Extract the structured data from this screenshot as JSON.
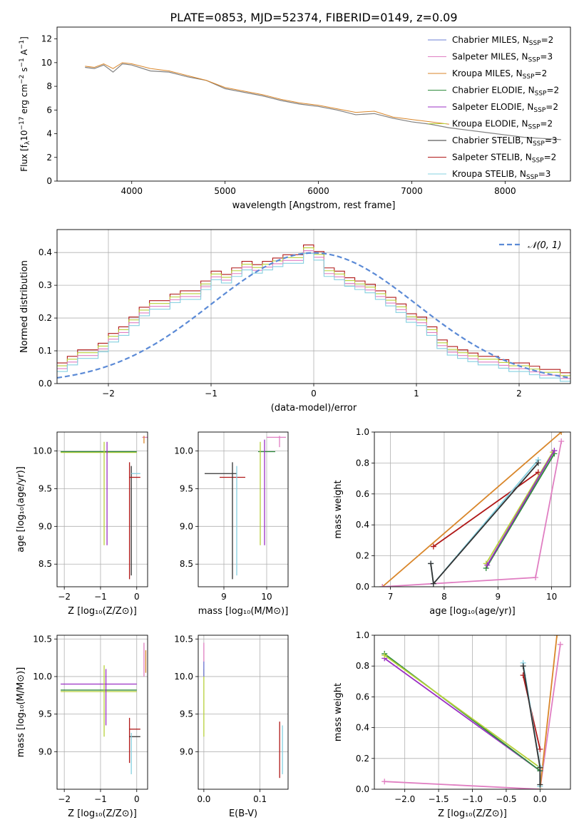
{
  "figure": {
    "title": "PLATE=0853, MJD=52374, FIBERID=0149, z=0.09"
  },
  "colors": {
    "Chabrier MILES": "#6b7fd6",
    "Salpeter MILES": "#e07ec2",
    "Kroupa MILES": "#d9862a",
    "Chabrier ELODIE": "#2e8b3c",
    "Salpeter ELODIE": "#9b30c4",
    "Kroupa ELODIE": "#b7d13a",
    "Chabrier STELIB": "#333333",
    "Salpeter STELIB": "#b01818",
    "Kroupa STELIB": "#85d0e0",
    "data": "#808080",
    "normal": "#5b8ad6"
  },
  "chart_data": [
    {
      "id": "spectrum",
      "type": "line",
      "title": "PLATE=0853, MJD=52374, FIBERID=0149, z=0.09",
      "xlabel": "wavelength [Angstrom, rest frame]",
      "ylabel_parts": [
        "Flux [f",
        "λ",
        "10",
        "−17",
        " erg cm",
        "−2",
        " s",
        "−1",
        " A",
        "−1",
        "]"
      ],
      "xlim": [
        3200,
        8700
      ],
      "ylim": [
        0,
        13
      ],
      "xticks": [
        4000,
        5000,
        6000,
        7000,
        8000
      ],
      "yticks": [
        0,
        2,
        4,
        6,
        8,
        10,
        12
      ],
      "legend_position": "top-right",
      "legend": [
        {
          "name": "Chabrier MILES",
          "nssp": "2"
        },
        {
          "name": "Salpeter MILES",
          "nssp": "3"
        },
        {
          "name": "Kroupa MILES",
          "nssp": "2"
        },
        {
          "name": "Chabrier ELODIE",
          "nssp": "2"
        },
        {
          "name": "Salpeter ELODIE",
          "nssp": "2"
        },
        {
          "name": "Kroupa ELODIE",
          "nssp": "2"
        },
        {
          "name": "Chabrier STELIB",
          "nssp": "3"
        },
        {
          "name": "Salpeter STELIB",
          "nssp": "2"
        },
        {
          "name": "Kroupa STELIB",
          "nssp": "3"
        }
      ],
      "data_series": {
        "x": [
          3500,
          3600,
          3700,
          3800,
          3900,
          4000,
          4200,
          4400,
          4600,
          4800,
          5000,
          5200,
          5400,
          5600,
          5800,
          6000,
          6200,
          6400,
          6600,
          6800,
          7000,
          7200,
          7400,
          7600,
          7800,
          8000,
          8200,
          8400,
          8600
        ],
        "y": [
          9.6,
          9.5,
          9.8,
          9.2,
          9.9,
          9.8,
          9.3,
          9.2,
          8.8,
          8.5,
          7.8,
          7.5,
          7.2,
          6.8,
          6.5,
          6.3,
          6.0,
          5.6,
          5.7,
          5.3,
          5.0,
          4.8,
          4.5,
          4.3,
          4.1,
          3.9,
          3.7,
          3.6,
          3.5
        ]
      },
      "model_series": {
        "x": [
          3500,
          3600,
          3700,
          3800,
          3900,
          4000,
          4200,
          4400,
          4600,
          4800,
          5000,
          5200,
          5400,
          5600,
          5800,
          6000,
          6200,
          6400,
          6600,
          6800,
          7000,
          7200,
          7400
        ],
        "y": [
          9.7,
          9.6,
          9.9,
          9.5,
          10.0,
          9.9,
          9.5,
          9.3,
          8.9,
          8.5,
          7.9,
          7.6,
          7.3,
          6.9,
          6.6,
          6.4,
          6.1,
          5.8,
          5.9,
          5.4,
          5.2,
          5.0,
          4.8
        ]
      }
    },
    {
      "id": "residuals",
      "type": "line",
      "xlabel": "(data-model)/error",
      "ylabel": "Normed distribution",
      "xlim": [
        -2.5,
        2.5
      ],
      "ylim": [
        0,
        0.47
      ],
      "xticks": [
        -2,
        -1,
        0,
        1,
        2
      ],
      "yticks": [
        0.0,
        0.1,
        0.2,
        0.3,
        0.4
      ],
      "legend_position": "top-right",
      "legend": [
        "𝒩(0, 1)"
      ],
      "hist_x": [
        -2.45,
        -2.35,
        -2.25,
        -2.15,
        -2.05,
        -1.95,
        -1.85,
        -1.75,
        -1.65,
        -1.55,
        -1.45,
        -1.35,
        -1.25,
        -1.15,
        -1.05,
        -0.95,
        -0.85,
        -0.75,
        -0.65,
        -0.55,
        -0.45,
        -0.35,
        -0.25,
        -0.15,
        -0.05,
        0.05,
        0.15,
        0.25,
        0.35,
        0.45,
        0.55,
        0.65,
        0.75,
        0.85,
        0.95,
        1.05,
        1.15,
        1.25,
        1.35,
        1.45,
        1.55,
        1.65,
        1.75,
        1.85,
        1.95,
        2.05,
        2.15,
        2.25,
        2.35,
        2.45
      ],
      "hist_y": [
        0.05,
        0.07,
        0.09,
        0.09,
        0.11,
        0.14,
        0.16,
        0.19,
        0.22,
        0.24,
        0.24,
        0.26,
        0.27,
        0.27,
        0.3,
        0.33,
        0.32,
        0.34,
        0.36,
        0.35,
        0.36,
        0.37,
        0.38,
        0.38,
        0.41,
        0.39,
        0.34,
        0.33,
        0.31,
        0.3,
        0.29,
        0.27,
        0.25,
        0.23,
        0.2,
        0.19,
        0.16,
        0.12,
        0.1,
        0.09,
        0.08,
        0.07,
        0.07,
        0.06,
        0.05,
        0.05,
        0.04,
        0.03,
        0.03,
        0.02
      ],
      "normal_curve": {
        "mu": 0,
        "sigma": 1
      }
    },
    {
      "id": "age-vs-Z",
      "type": "scatter",
      "xlabel": "Z [log₁₀(Z/Z⊙)]",
      "ylabel": "age  [log₁₀(age/yr)]",
      "xlim": [
        -2.2,
        0.3
      ],
      "ylim": [
        8.2,
        10.25
      ],
      "xticks": [
        -2,
        -1,
        0
      ],
      "yticks": [
        8.5,
        9.0,
        9.5,
        10.0
      ],
      "bars": [
        {
          "x": -2.1,
          "x2": 0.0,
          "y": 9.98,
          "y2": 9.98,
          "model": "Kroupa ELODIE"
        },
        {
          "x": -2.1,
          "x2": 0.0,
          "y": 9.99,
          "y2": 9.99,
          "model": "Chabrier ELODIE"
        },
        {
          "x": -0.9,
          "x2": -0.9,
          "y": 8.75,
          "y2": 10.12,
          "model": "Kroupa ELODIE"
        },
        {
          "x": -0.82,
          "x2": -0.82,
          "y": 8.75,
          "y2": 10.12,
          "model": "Salpeter ELODIE"
        },
        {
          "x": -0.2,
          "x2": -0.2,
          "y": 8.3,
          "y2": 9.85,
          "model": "Salpeter STELIB"
        },
        {
          "x": -0.15,
          "x2": -0.15,
          "y": 8.35,
          "y2": 9.8,
          "model": "Chabrier STELIB"
        },
        {
          "x": -0.2,
          "x2": 0.1,
          "y": 9.65,
          "y2": 9.65,
          "model": "Salpeter STELIB"
        },
        {
          "x": -0.15,
          "x2": 0.1,
          "y": 9.7,
          "y2": 9.7,
          "model": "Kroupa STELIB"
        },
        {
          "x": 0.15,
          "x2": 0.3,
          "y": 10.18,
          "y2": 10.18,
          "model": "Salpeter MILES"
        },
        {
          "x": 0.2,
          "x2": 0.2,
          "y": 10.1,
          "y2": 10.2,
          "model": "Kroupa MILES"
        }
      ]
    },
    {
      "id": "age-vs-mass",
      "type": "scatter",
      "xlabel": "mass [log₁₀(M/M⊙)]",
      "ylabel": "",
      "xlim": [
        8.4,
        10.5
      ],
      "ylim": [
        8.2,
        10.25
      ],
      "xticks": [
        8,
        9,
        10
      ],
      "yticks": [
        8.5,
        9.0,
        9.5,
        10.0
      ],
      "bars": [
        {
          "x": 8.55,
          "x2": 9.3,
          "y": 9.7,
          "y2": 9.7,
          "model": "Chabrier STELIB"
        },
        {
          "x": 8.9,
          "x2": 9.5,
          "y": 9.65,
          "y2": 9.65,
          "model": "Salpeter STELIB"
        },
        {
          "x": 9.2,
          "x2": 9.2,
          "y": 8.3,
          "y2": 9.85,
          "model": "Chabrier STELIB"
        },
        {
          "x": 9.3,
          "x2": 9.3,
          "y": 8.35,
          "y2": 9.8,
          "model": "Kroupa STELIB"
        },
        {
          "x": 9.8,
          "x2": 10.2,
          "y": 9.99,
          "y2": 9.99,
          "model": "Chabrier ELODIE"
        },
        {
          "x": 9.85,
          "x2": 9.85,
          "y": 8.75,
          "y2": 10.12,
          "model": "Kroupa ELODIE"
        },
        {
          "x": 9.95,
          "x2": 9.95,
          "y": 8.75,
          "y2": 10.15,
          "model": "Salpeter ELODIE"
        },
        {
          "x": 10.0,
          "x2": 10.45,
          "y": 10.18,
          "y2": 10.18,
          "model": "Salpeter MILES"
        },
        {
          "x": 10.3,
          "x2": 10.3,
          "y": 10.05,
          "y2": 10.2,
          "model": "Salpeter MILES"
        }
      ]
    },
    {
      "id": "massweight-vs-age",
      "type": "line",
      "xlabel": "age  [log₁₀(age/yr)]",
      "ylabel": "mass weight",
      "xlim": [
        6.7,
        10.35
      ],
      "ylim": [
        0,
        1
      ],
      "xticks": [
        7,
        8,
        9,
        10
      ],
      "yticks": [
        0.0,
        0.2,
        0.4,
        0.6,
        0.8,
        1.0
      ],
      "series": [
        {
          "model": "Kroupa MILES",
          "x": [
            6.85,
            10.18
          ],
          "y": [
            0.0,
            1.0
          ]
        },
        {
          "model": "Salpeter MILES",
          "x": [
            6.85,
            9.7,
            10.18
          ],
          "y": [
            0.0,
            0.06,
            0.94
          ]
        },
        {
          "model": "Salpeter STELIB",
          "x": [
            7.8,
            9.75
          ],
          "y": [
            0.26,
            0.74
          ]
        },
        {
          "model": "Kroupa STELIB",
          "x": [
            7.75,
            7.8,
            9.75
          ],
          "y": [
            0.15,
            0.02,
            0.82
          ]
        },
        {
          "model": "Chabrier STELIB",
          "x": [
            7.75,
            7.8,
            9.75
          ],
          "y": [
            0.15,
            0.02,
            0.8
          ]
        },
        {
          "model": "Chabrier ELODIE",
          "x": [
            8.78,
            10.05
          ],
          "y": [
            0.12,
            0.86
          ]
        },
        {
          "model": "Kroupa ELODIE",
          "x": [
            8.78,
            10.02
          ],
          "y": [
            0.15,
            0.87
          ]
        },
        {
          "model": "Salpeter ELODIE",
          "x": [
            8.8,
            10.05
          ],
          "y": [
            0.14,
            0.88
          ]
        }
      ]
    },
    {
      "id": "mass-vs-Z",
      "type": "scatter",
      "xlabel": "Z [log₁₀(Z/Z⊙)]",
      "ylabel": "mass [log₁₀(M/M⊙)]",
      "xlim": [
        -2.2,
        0.3
      ],
      "ylim": [
        8.5,
        10.55
      ],
      "xticks": [
        -2,
        -1,
        0
      ],
      "yticks": [
        9.0,
        9.5,
        10.0,
        10.5
      ],
      "bars": [
        {
          "x": -2.1,
          "x2": 0.0,
          "y": 9.9,
          "y2": 9.9,
          "model": "Salpeter ELODIE"
        },
        {
          "x": -2.1,
          "x2": 0.0,
          "y": 9.82,
          "y2": 9.82,
          "model": "Chabrier ELODIE"
        },
        {
          "x": -2.1,
          "x2": 0.0,
          "y": 9.8,
          "y2": 9.8,
          "model": "Kroupa ELODIE"
        },
        {
          "x": -0.9,
          "x2": -0.9,
          "y": 9.2,
          "y2": 10.15,
          "model": "Kroupa ELODIE"
        },
        {
          "x": -0.85,
          "x2": -0.85,
          "y": 9.35,
          "y2": 10.1,
          "model": "Salpeter ELODIE"
        },
        {
          "x": -0.2,
          "x2": -0.2,
          "y": 8.85,
          "y2": 9.45,
          "model": "Salpeter STELIB"
        },
        {
          "x": -0.2,
          "x2": 0.1,
          "y": 9.3,
          "y2": 9.3,
          "model": "Salpeter STELIB"
        },
        {
          "x": -0.2,
          "x2": 0.1,
          "y": 9.2,
          "y2": 9.2,
          "model": "Chabrier STELIB"
        },
        {
          "x": -0.15,
          "x2": -0.15,
          "y": 8.7,
          "y2": 9.25,
          "model": "Kroupa STELIB"
        },
        {
          "x": 0.2,
          "x2": 0.2,
          "y": 10.0,
          "y2": 10.45,
          "model": "Salpeter MILES"
        },
        {
          "x": 0.25,
          "x2": 0.25,
          "y": 10.05,
          "y2": 10.35,
          "model": "Kroupa MILES"
        }
      ]
    },
    {
      "id": "mass-vs-EBV",
      "type": "scatter",
      "xlabel": "E(B-V)",
      "ylabel": "",
      "xlim": [
        -0.01,
        0.15
      ],
      "ylim": [
        8.5,
        10.55
      ],
      "xticks": [
        0.0,
        0.1
      ],
      "yticks": [
        9.0,
        9.5,
        10.0,
        10.5
      ],
      "bars": [
        {
          "x": 0.0,
          "x2": 0.0,
          "y": 9.2,
          "y2": 10.1,
          "model": "Kroupa ELODIE"
        },
        {
          "x": 0.0,
          "x2": 0.0,
          "y": 10.0,
          "y2": 10.45,
          "model": "Salpeter MILES"
        },
        {
          "x": 0.0,
          "x2": 0.0,
          "y": 10.0,
          "y2": 10.2,
          "model": "Chabrier MILES"
        },
        {
          "x": 0.135,
          "x2": 0.135,
          "y": 8.65,
          "y2": 9.4,
          "model": "Salpeter STELIB"
        },
        {
          "x": 0.14,
          "x2": 0.14,
          "y": 8.7,
          "y2": 9.35,
          "model": "Kroupa STELIB"
        }
      ]
    },
    {
      "id": "massweight-vs-Z",
      "type": "line",
      "xlabel": "Z [log₁₀(Z/Z⊙)]",
      "ylabel": "mass weight",
      "xlim": [
        -2.45,
        0.45
      ],
      "ylim": [
        0,
        1
      ],
      "xticks": [
        -2.0,
        -1.5,
        -1.0,
        -0.5,
        0.0
      ],
      "yticks": [
        0.0,
        0.2,
        0.4,
        0.6,
        0.8,
        1.0
      ],
      "series": [
        {
          "model": "Salpeter MILES",
          "x": [
            -2.3,
            0.0,
            0.3
          ],
          "y": [
            0.05,
            0.0,
            0.94
          ]
        },
        {
          "model": "Kroupa MILES",
          "x": [
            0.0,
            0.25
          ],
          "y": [
            0.0,
            1.0
          ]
        },
        {
          "model": "Salpeter ELODIE",
          "x": [
            -2.3,
            0.0
          ],
          "y": [
            0.85,
            0.12
          ]
        },
        {
          "model": "Chabrier ELODIE",
          "x": [
            -2.3,
            0.0
          ],
          "y": [
            0.88,
            0.12
          ]
        },
        {
          "model": "Kroupa ELODIE",
          "x": [
            -2.3,
            0.0
          ],
          "y": [
            0.87,
            0.14
          ]
        },
        {
          "model": "Salpeter STELIB",
          "x": [
            -0.25,
            0.0
          ],
          "y": [
            0.74,
            0.26
          ]
        },
        {
          "model": "Kroupa STELIB",
          "x": [
            -0.25,
            0.0,
            0.0
          ],
          "y": [
            0.82,
            0.15,
            0.02
          ]
        },
        {
          "model": "Chabrier STELIB",
          "x": [
            -0.25,
            0.0,
            0.0
          ],
          "y": [
            0.8,
            0.14,
            0.03
          ]
        }
      ]
    }
  ]
}
